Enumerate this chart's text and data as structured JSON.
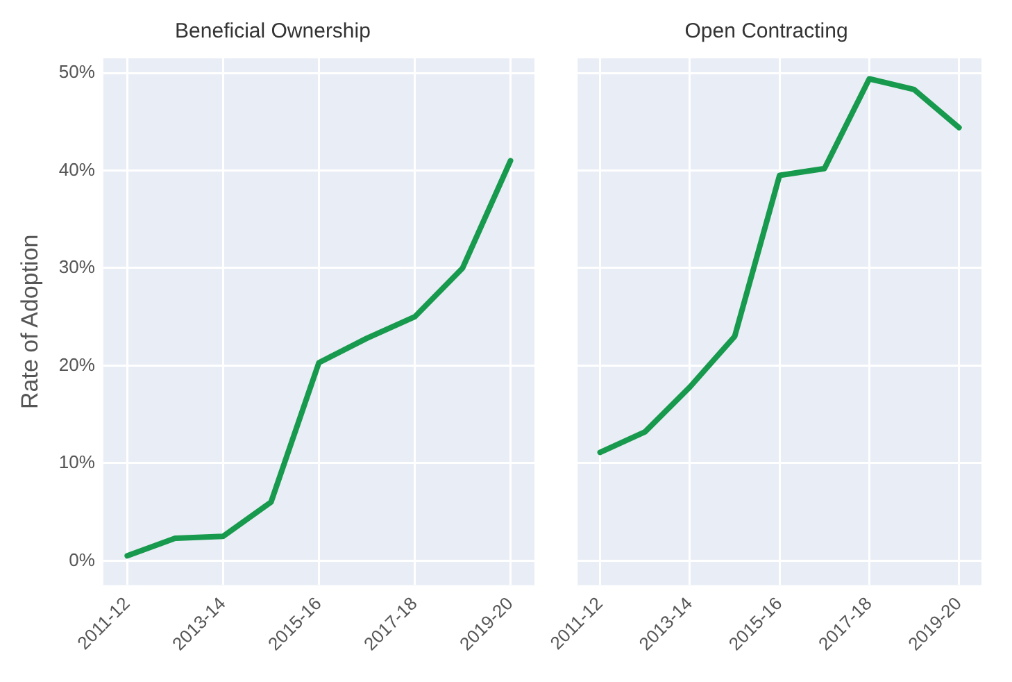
{
  "chart_data": [
    {
      "type": "line",
      "title": "Beneficial Ownership",
      "ylabel": "Rate of Adoption",
      "categories": [
        "2011-12",
        null,
        "2013-14",
        null,
        "2015-16",
        null,
        "2017-18",
        null,
        "2019-20"
      ],
      "series": [
        {
          "color": "#179a4d",
          "values": [
            0.5,
            2.3,
            2.5,
            6,
            20.3,
            22.8,
            25,
            30,
            41
          ]
        }
      ],
      "ylim": [
        -2.5,
        51.5
      ],
      "yticks": [
        {
          "value": 0,
          "label": "0%"
        },
        {
          "value": 10,
          "label": "10%"
        },
        {
          "value": 20,
          "label": "20%"
        },
        {
          "value": 30,
          "label": "30%"
        },
        {
          "value": 40,
          "label": "40%"
        },
        {
          "value": 50,
          "label": "50%"
        }
      ],
      "grid": true,
      "legend": false,
      "marker": "none",
      "line_style": "solid"
    },
    {
      "type": "line",
      "title": "Open Contracting",
      "categories": [
        "2011-12",
        null,
        "2013-14",
        null,
        "2015-16",
        null,
        "2017-18",
        null,
        "2019-20"
      ],
      "series": [
        {
          "color": "#179a4d",
          "values": [
            11.1,
            13.2,
            17.8,
            23,
            39.5,
            40.2,
            49.4,
            48.3,
            44.4
          ]
        }
      ],
      "ylim": [
        -2.5,
        51.5
      ],
      "yticks": [
        {
          "value": 0,
          "label": null
        },
        {
          "value": 10,
          "label": null
        },
        {
          "value": 20,
          "label": null
        },
        {
          "value": 30,
          "label": null
        },
        {
          "value": 40,
          "label": null
        },
        {
          "value": 50,
          "label": null
        }
      ],
      "tick_labels": "x",
      "grid": true,
      "legend": false,
      "marker": "none",
      "line_style": "solid"
    }
  ]
}
